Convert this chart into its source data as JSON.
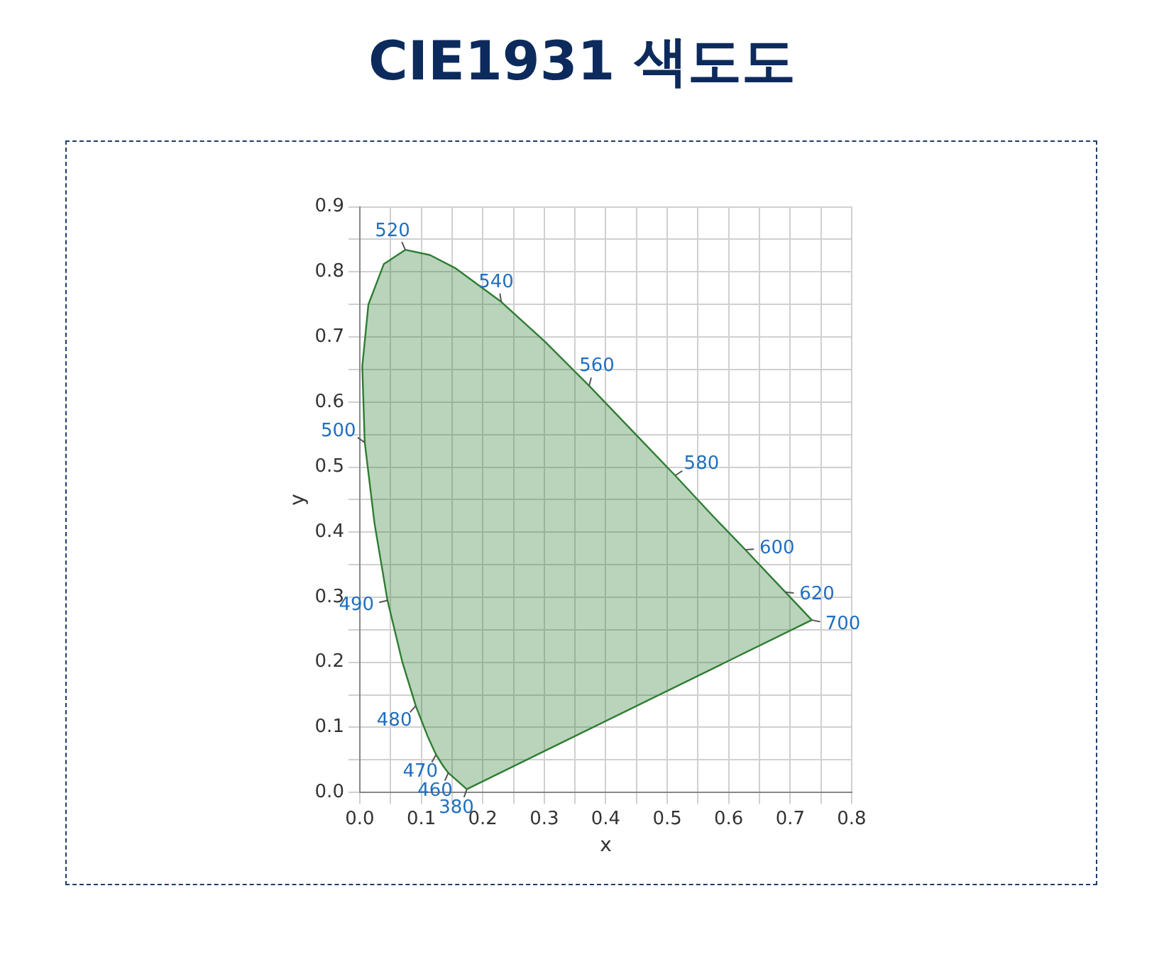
{
  "chart_data": {
    "type": "area",
    "title": "CIE1931 색도도",
    "xlabel": "x",
    "ylabel": "y",
    "xlim": [
      0,
      0.8
    ],
    "ylim": [
      0,
      0.9
    ],
    "xticks": [
      {
        "value": 0,
        "label": "0.0"
      },
      {
        "value": 0.05,
        "label": null
      },
      0.1,
      {
        "value": 0.15,
        "label": null
      },
      0.2,
      {
        "value": 0.25,
        "label": null
      },
      0.3,
      {
        "value": 0.35,
        "label": null
      },
      0.4,
      {
        "value": 0.45,
        "label": null
      },
      0.5,
      {
        "value": 0.55,
        "label": null
      },
      0.6,
      {
        "value": 0.65,
        "label": null
      },
      0.7,
      {
        "value": 0.75,
        "label": null
      },
      0.8
    ],
    "yticks": [
      {
        "value": 0,
        "label": "0.0"
      },
      {
        "value": 0.05,
        "label": null
      },
      0.1,
      {
        "value": 0.15,
        "label": null
      },
      0.2,
      {
        "value": 0.25,
        "label": null
      },
      0.3,
      {
        "value": 0.35,
        "label": null
      },
      0.4,
      {
        "value": 0.45,
        "label": null
      },
      0.5,
      {
        "value": 0.55,
        "label": null
      },
      0.6,
      {
        "value": 0.65,
        "label": null
      },
      0.7,
      {
        "value": 0.75,
        "label": null
      },
      0.8,
      {
        "value": 0.85,
        "label": null
      },
      0.9
    ],
    "grid": true,
    "legend": false,
    "marker": "none",
    "line_style": "solid",
    "series": [
      {
        "color": "#2e7d32",
        "x": [
          0.174,
          0.144,
          0.136,
          0.124,
          0.11,
          0.091,
          0.069,
          0.045,
          0.024,
          0.008,
          0.004,
          0.014,
          0.039,
          0.074,
          0.114,
          0.155,
          0.23,
          0.302,
          0.373,
          0.444,
          0.513,
          0.575,
          0.627,
          0.666,
          0.692,
          0.719,
          0.735,
          0.174
        ],
        "values": [
          0.005,
          0.03,
          0.04,
          0.058,
          0.087,
          0.133,
          0.201,
          0.295,
          0.413,
          0.538,
          0.655,
          0.75,
          0.812,
          0.834,
          0.826,
          0.806,
          0.754,
          0.692,
          0.625,
          0.555,
          0.487,
          0.424,
          0.373,
          0.334,
          0.308,
          0.281,
          0.265,
          0.005
        ]
      }
    ],
    "annotations": [
      {
        "text": "380",
        "x": 0.174,
        "y": 0.005
      },
      {
        "text": "460",
        "x": 0.144,
        "y": 0.03
      },
      {
        "text": "470",
        "x": 0.124,
        "y": 0.058
      },
      {
        "text": "480",
        "x": 0.091,
        "y": 0.133
      },
      {
        "text": "490",
        "x": 0.045,
        "y": 0.295
      },
      {
        "text": "500",
        "x": 0.008,
        "y": 0.538
      },
      {
        "text": "520",
        "x": 0.074,
        "y": 0.834
      },
      {
        "text": "540",
        "x": 0.23,
        "y": 0.754
      },
      {
        "text": "560",
        "x": 0.373,
        "y": 0.625
      },
      {
        "text": "580",
        "x": 0.513,
        "y": 0.487
      },
      {
        "text": "600",
        "x": 0.627,
        "y": 0.373
      },
      {
        "text": "620",
        "x": 0.692,
        "y": 0.308
      },
      {
        "text": "700",
        "x": 0.735,
        "y": 0.265
      }
    ]
  }
}
